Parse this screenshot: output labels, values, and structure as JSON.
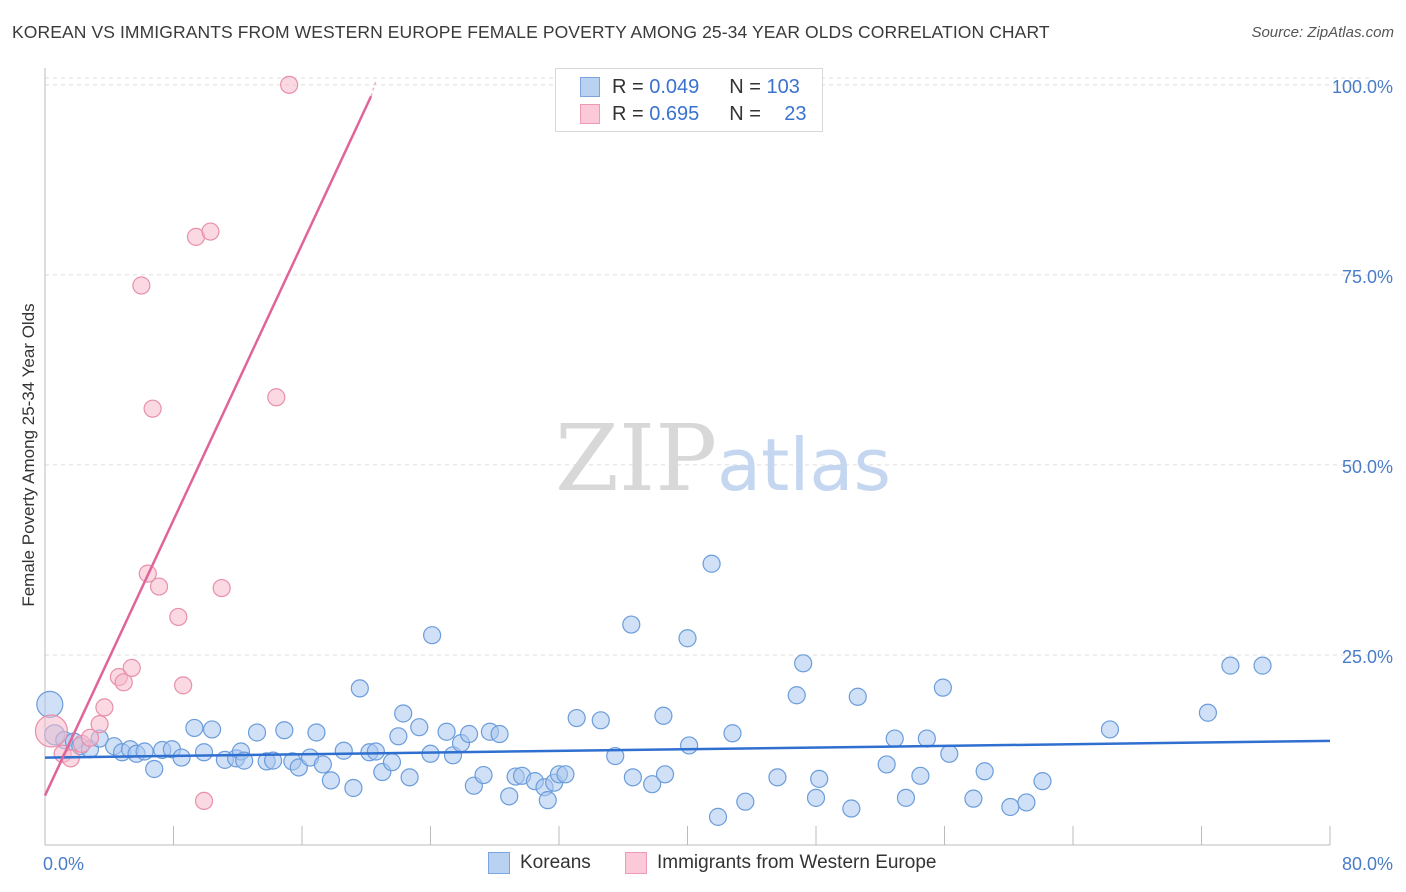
{
  "title": "KOREAN VS IMMIGRANTS FROM WESTERN EUROPE FEMALE POVERTY AMONG 25-34 YEAR OLDS CORRELATION CHART",
  "source": "Source: ZipAtlas.com",
  "watermark": {
    "zip": "ZIP",
    "atlas": "atlas"
  },
  "legend": {
    "korean": {
      "r_label": "R =",
      "r_value": "0.049",
      "n_label": "N =",
      "n_value": "103"
    },
    "immigrant": {
      "r_label": "R =",
      "r_value": "0.695",
      "n_label": "N =",
      "n_value": "23"
    }
  },
  "bottom_legend": {
    "korean": "Koreans",
    "immigrant": "Immigrants from Western Europe"
  },
  "colors": {
    "korean_fill": "#a9c7ee",
    "korean_stroke": "#6b9ddb",
    "korean_line": "#2f6fd0",
    "immigrant_fill": "#f6b9cb",
    "immigrant_stroke": "#e88fab",
    "immigrant_line": "#e0649a",
    "tick_text": "#4a7cc8",
    "grid": "#dddddd"
  },
  "chart_data": {
    "type": "scatter",
    "title": "KOREAN VS IMMIGRANTS FROM WESTERN EUROPE FEMALE POVERTY AMONG 25-34 YEAR OLDS CORRELATION CHART",
    "xlabel": "",
    "ylabel": "Female Poverty Among 25-34 Year Olds",
    "xlim": [
      0,
      80
    ],
    "ylim": [
      0,
      102
    ],
    "x_tick_labels": [
      "0.0%",
      "80.0%"
    ],
    "y_ticks": [
      25,
      50,
      75,
      100
    ],
    "y_tick_labels": [
      "25.0%",
      "50.0%",
      "75.0%",
      "100.0%"
    ],
    "grid": true,
    "series": [
      {
        "name": "Koreans",
        "r": 0.049,
        "n": 103,
        "trend": {
          "x": [
            0,
            80
          ],
          "y": [
            11.5,
            13.7
          ]
        },
        "points": [
          {
            "x": 0.3,
            "y": 18.5,
            "s": "l"
          },
          {
            "x": 0.6,
            "y": 14.5,
            "s": "m"
          },
          {
            "x": 1.2,
            "y": 13.8
          },
          {
            "x": 1.8,
            "y": 13.6
          },
          {
            "x": 2.2,
            "y": 13.0
          },
          {
            "x": 2.8,
            "y": 12.6
          },
          {
            "x": 3.4,
            "y": 14.0
          },
          {
            "x": 4.3,
            "y": 13.0
          },
          {
            "x": 4.8,
            "y": 12.2
          },
          {
            "x": 5.3,
            "y": 12.6
          },
          {
            "x": 5.7,
            "y": 12.0
          },
          {
            "x": 6.2,
            "y": 12.3
          },
          {
            "x": 6.8,
            "y": 10.0
          },
          {
            "x": 7.3,
            "y": 12.5
          },
          {
            "x": 7.9,
            "y": 12.6
          },
          {
            "x": 8.5,
            "y": 11.5
          },
          {
            "x": 9.3,
            "y": 15.4
          },
          {
            "x": 9.9,
            "y": 12.2
          },
          {
            "x": 10.4,
            "y": 15.2
          },
          {
            "x": 11.2,
            "y": 11.2
          },
          {
            "x": 11.9,
            "y": 11.4
          },
          {
            "x": 12.2,
            "y": 12.3
          },
          {
            "x": 12.4,
            "y": 11.1
          },
          {
            "x": 13.2,
            "y": 14.8
          },
          {
            "x": 13.8,
            "y": 11.0
          },
          {
            "x": 14.2,
            "y": 11.1
          },
          {
            "x": 14.9,
            "y": 15.1
          },
          {
            "x": 15.4,
            "y": 11.0
          },
          {
            "x": 15.8,
            "y": 10.2
          },
          {
            "x": 16.5,
            "y": 11.5
          },
          {
            "x": 16.9,
            "y": 14.8
          },
          {
            "x": 17.3,
            "y": 10.6
          },
          {
            "x": 17.8,
            "y": 8.5
          },
          {
            "x": 18.6,
            "y": 12.4
          },
          {
            "x": 19.2,
            "y": 7.5
          },
          {
            "x": 19.6,
            "y": 20.6
          },
          {
            "x": 20.2,
            "y": 12.2
          },
          {
            "x": 20.6,
            "y": 12.3
          },
          {
            "x": 21.0,
            "y": 9.6
          },
          {
            "x": 21.6,
            "y": 10.9
          },
          {
            "x": 22.0,
            "y": 14.3
          },
          {
            "x": 22.3,
            "y": 17.3
          },
          {
            "x": 22.7,
            "y": 8.9
          },
          {
            "x": 23.3,
            "y": 15.5
          },
          {
            "x": 24.0,
            "y": 12.0
          },
          {
            "x": 24.1,
            "y": 27.6
          },
          {
            "x": 25.0,
            "y": 14.9
          },
          {
            "x": 25.4,
            "y": 11.8
          },
          {
            "x": 25.9,
            "y": 13.4
          },
          {
            "x": 26.4,
            "y": 14.6
          },
          {
            "x": 26.7,
            "y": 7.8
          },
          {
            "x": 27.3,
            "y": 9.2
          },
          {
            "x": 27.7,
            "y": 14.9
          },
          {
            "x": 28.3,
            "y": 14.6
          },
          {
            "x": 28.9,
            "y": 6.4
          },
          {
            "x": 29.3,
            "y": 9.0
          },
          {
            "x": 29.7,
            "y": 9.1
          },
          {
            "x": 30.5,
            "y": 8.4
          },
          {
            "x": 31.1,
            "y": 7.6
          },
          {
            "x": 31.3,
            "y": 5.9
          },
          {
            "x": 31.7,
            "y": 8.2
          },
          {
            "x": 32.0,
            "y": 9.3
          },
          {
            "x": 32.4,
            "y": 9.3
          },
          {
            "x": 33.1,
            "y": 16.7
          },
          {
            "x": 34.6,
            "y": 16.4
          },
          {
            "x": 35.5,
            "y": 11.7
          },
          {
            "x": 36.5,
            "y": 29.0
          },
          {
            "x": 36.6,
            "y": 8.9
          },
          {
            "x": 37.8,
            "y": 8.0
          },
          {
            "x": 38.5,
            "y": 17.0
          },
          {
            "x": 38.6,
            "y": 9.3
          },
          {
            "x": 40.0,
            "y": 27.2
          },
          {
            "x": 40.1,
            "y": 13.1
          },
          {
            "x": 41.5,
            "y": 37.0
          },
          {
            "x": 41.9,
            "y": 3.7
          },
          {
            "x": 42.8,
            "y": 14.7
          },
          {
            "x": 43.6,
            "y": 5.7
          },
          {
            "x": 45.6,
            "y": 8.9
          },
          {
            "x": 46.8,
            "y": 19.7
          },
          {
            "x": 47.2,
            "y": 23.9
          },
          {
            "x": 48.0,
            "y": 6.2
          },
          {
            "x": 48.2,
            "y": 8.7
          },
          {
            "x": 50.2,
            "y": 4.8
          },
          {
            "x": 50.6,
            "y": 19.5
          },
          {
            "x": 52.4,
            "y": 10.6
          },
          {
            "x": 52.9,
            "y": 14.0
          },
          {
            "x": 53.6,
            "y": 6.2
          },
          {
            "x": 54.5,
            "y": 9.1
          },
          {
            "x": 54.9,
            "y": 14.0
          },
          {
            "x": 55.9,
            "y": 20.7
          },
          {
            "x": 56.3,
            "y": 12.0
          },
          {
            "x": 57.8,
            "y": 6.1
          },
          {
            "x": 58.5,
            "y": 9.7
          },
          {
            "x": 60.1,
            "y": 5.0
          },
          {
            "x": 61.1,
            "y": 5.6
          },
          {
            "x": 62.1,
            "y": 8.4
          },
          {
            "x": 66.3,
            "y": 15.2
          },
          {
            "x": 72.4,
            "y": 17.4
          },
          {
            "x": 73.8,
            "y": 23.6
          },
          {
            "x": 75.8,
            "y": 23.6
          }
        ]
      },
      {
        "name": "Immigrants from Western Europe",
        "r": 0.695,
        "n": 23,
        "trend": {
          "x": [
            0,
            20.3
          ],
          "y": [
            6.5,
            98.5
          ]
        },
        "trend_dashed": {
          "x": [
            20.3,
            20.6
          ],
          "y": [
            98.5,
            100.5
          ]
        },
        "points": [
          {
            "x": 0.4,
            "y": 15.0,
            "s": "xl"
          },
          {
            "x": 1.1,
            "y": 12.0
          },
          {
            "x": 1.6,
            "y": 11.4
          },
          {
            "x": 2.3,
            "y": 13.3
          },
          {
            "x": 2.8,
            "y": 14.1
          },
          {
            "x": 3.4,
            "y": 15.9
          },
          {
            "x": 3.7,
            "y": 18.1
          },
          {
            "x": 4.6,
            "y": 22.1
          },
          {
            "x": 4.9,
            "y": 21.4
          },
          {
            "x": 5.4,
            "y": 23.3
          },
          {
            "x": 6.0,
            "y": 73.6
          },
          {
            "x": 6.4,
            "y": 35.7
          },
          {
            "x": 6.7,
            "y": 57.4
          },
          {
            "x": 7.1,
            "y": 34.0
          },
          {
            "x": 8.3,
            "y": 30.0
          },
          {
            "x": 8.6,
            "y": 21.0
          },
          {
            "x": 9.4,
            "y": 80.0
          },
          {
            "x": 9.9,
            "y": 5.8
          },
          {
            "x": 10.3,
            "y": 80.7
          },
          {
            "x": 11.0,
            "y": 33.8
          },
          {
            "x": 14.4,
            "y": 58.9
          },
          {
            "x": 15.2,
            "y": 100.0
          }
        ]
      }
    ]
  }
}
